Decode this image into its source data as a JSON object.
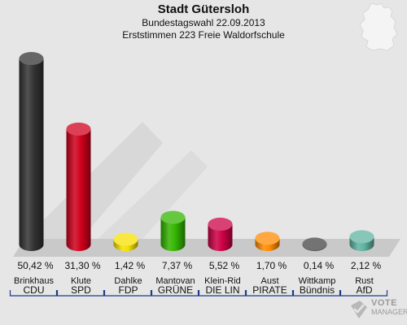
{
  "header": {
    "title": "Stadt Gütersloh",
    "subtitle1": "Bundestagswahl 22.09.2013",
    "subtitle2": "Erststimmen 223 Freie Waldorfschule"
  },
  "chart_data": {
    "type": "bar",
    "title": "Stadt Gütersloh",
    "subtitle": "Bundestagswahl 22.09.2013 – Erststimmen 223 Freie Waldorfschule",
    "candidates": [
      "Brinkhaus",
      "Klute",
      "Dahlke",
      "Mantovan",
      "Klein-Rid",
      "Aust",
      "Wittkamp",
      "Rust"
    ],
    "categories": [
      "CDU",
      "SPD",
      "FDP",
      "GRÜNE",
      "DIE LIN",
      "PIRATE",
      "Bündnis",
      "AfD"
    ],
    "values": [
      50.42,
      31.3,
      1.42,
      7.37,
      5.52,
      1.7,
      0.14,
      2.12
    ],
    "value_labels": [
      "50,42 %",
      "31,30 %",
      "1,42 %",
      "7,37 %",
      "5,52 %",
      "1,70 %",
      "0,14 %",
      "2,12 %"
    ],
    "colors": [
      "#333333",
      "#d0001c",
      "#f5e000",
      "#33b500",
      "#cc0044",
      "#ff8a00",
      "#444444",
      "#5fb3a0"
    ],
    "unit": "%",
    "ylim": [
      0,
      50.42
    ],
    "grid": false,
    "legend": "none"
  },
  "watermark": {
    "line1": "VOTE",
    "line2": "MANAGER"
  }
}
